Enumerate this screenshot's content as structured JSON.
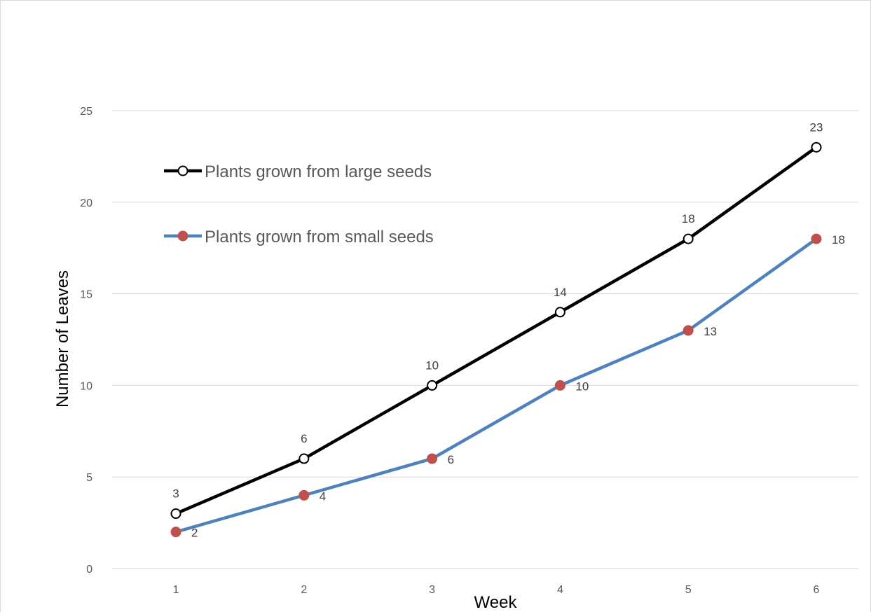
{
  "chart_data": {
    "type": "line",
    "title": "",
    "xlabel": "Week",
    "ylabel": "Number of Leaves",
    "ylim": [
      0,
      25
    ],
    "ytick_step": 5,
    "grid": true,
    "legend_position": "top-left",
    "x": [
      1,
      2,
      3,
      4,
      5,
      6
    ],
    "x_tick_labels": [
      "1",
      "2",
      "3",
      "4",
      "5",
      "6"
    ],
    "y_tick_labels": [
      "0",
      "5",
      "10",
      "15",
      "20",
      "25"
    ],
    "series": [
      {
        "name": "Plants grown from large seeds",
        "values": [
          3,
          6,
          10,
          14,
          18,
          23
        ],
        "labels": [
          "3",
          "6",
          "10",
          "14",
          "18",
          "23"
        ],
        "line_color": "#000000",
        "marker_fill": "#ffffff",
        "marker_stroke": "#000000",
        "label_side": "above"
      },
      {
        "name": "Plants grown from small seeds",
        "values": [
          2,
          4,
          6,
          10,
          13,
          18
        ],
        "labels": [
          "2",
          "4",
          "6",
          "10",
          "13",
          "18"
        ],
        "line_color": "#4f81bd",
        "marker_fill": "#c0504d",
        "marker_stroke": "#c0504d",
        "label_side": "right"
      }
    ]
  }
}
